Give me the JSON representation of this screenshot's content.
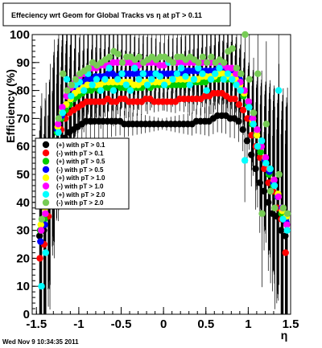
{
  "chart_data": {
    "type": "scatter",
    "title": "Effeciency wrt Geom for Global Tracks vs   η at pT > 0.11",
    "xlabel": "η",
    "ylabel": "Efficiency (%)",
    "xlim": [
      -1.55,
      1.5
    ],
    "ylim": [
      0,
      100
    ],
    "x_ticks": [
      -1.5,
      -1,
      -0.5,
      0,
      0.5,
      1,
      1.5
    ],
    "x_tick_labels": [
      "-1.5",
      "-1",
      "-0.5",
      "0",
      "0.5",
      "1",
      "1.5"
    ],
    "y_ticks": [
      0,
      10,
      20,
      30,
      40,
      50,
      60,
      70,
      80,
      90,
      100
    ],
    "y_tick_labels": [
      "0",
      "10",
      "20",
      "30",
      "40",
      "50",
      "60",
      "70",
      "80",
      "90",
      "100"
    ],
    "grid": false,
    "legend_position": "middle-left",
    "series": [
      {
        "name": "(+) with pT > 0.1",
        "color": "#000000",
        "x": [
          -1.45,
          -1.4,
          -1.35,
          -1.3,
          -1.25,
          -1.2,
          -1.15,
          -1.1,
          -1.05,
          -1.0,
          -0.95,
          -0.9,
          -0.85,
          -0.8,
          -0.75,
          -0.7,
          -0.65,
          -0.6,
          -0.55,
          -0.5,
          -0.45,
          -0.4,
          -0.35,
          -0.3,
          -0.25,
          -0.2,
          -0.15,
          -0.1,
          -0.05,
          0.0,
          0.05,
          0.1,
          0.15,
          0.2,
          0.25,
          0.3,
          0.35,
          0.4,
          0.45,
          0.5,
          0.55,
          0.6,
          0.65,
          0.7,
          0.75,
          0.8,
          0.85,
          0.9,
          0.95,
          1.0,
          1.05,
          1.1,
          1.15,
          1.2,
          1.25,
          1.3,
          1.35,
          1.4,
          1.45
        ],
        "y": [
          28,
          30,
          40,
          52,
          58,
          61,
          63,
          65,
          66,
          67,
          68,
          69,
          69,
          69,
          69,
          69,
          69,
          69,
          69,
          69,
          68,
          68,
          68,
          68,
          68,
          68,
          68,
          68,
          68,
          68,
          68,
          68,
          68,
          68,
          68,
          68,
          68,
          69,
          69,
          69,
          69,
          70,
          71,
          71,
          71,
          70,
          70,
          69,
          66,
          62,
          57,
          52,
          47,
          44,
          40,
          36,
          35,
          30,
          28
        ]
      },
      {
        "name": "(-) with pT > 0.1",
        "color": "#ff0000",
        "x": [
          -1.45,
          -1.4,
          -1.35,
          -1.3,
          -1.25,
          -1.2,
          -1.15,
          -1.1,
          -1.05,
          -1.0,
          -0.95,
          -0.9,
          -0.85,
          -0.8,
          -0.75,
          -0.7,
          -0.65,
          -0.6,
          -0.55,
          -0.5,
          -0.45,
          -0.4,
          -0.35,
          -0.3,
          -0.25,
          -0.2,
          -0.15,
          -0.1,
          -0.05,
          0.0,
          0.05,
          0.1,
          0.15,
          0.2,
          0.25,
          0.3,
          0.35,
          0.4,
          0.45,
          0.5,
          0.55,
          0.6,
          0.65,
          0.7,
          0.75,
          0.8,
          0.85,
          0.9,
          0.95,
          1.0,
          1.05,
          1.1,
          1.15,
          1.2,
          1.25,
          1.3,
          1.35,
          1.4,
          1.45
        ],
        "y": [
          20,
          25,
          35,
          50,
          60,
          66,
          70,
          72,
          73,
          74,
          75,
          76,
          76,
          76,
          76,
          76,
          77,
          76,
          76,
          77,
          77,
          76,
          76,
          76,
          76,
          77,
          77,
          76,
          76,
          76,
          76,
          76,
          76,
          77,
          77,
          77,
          77,
          77,
          77,
          78,
          78,
          79,
          79,
          79,
          78,
          77,
          77,
          75,
          73,
          70,
          64,
          60,
          56,
          52,
          47,
          44,
          38,
          34,
          22
        ]
      },
      {
        "name": "(+) with pT > 0.5",
        "color": "#00cc00",
        "x": [
          -1.45,
          -1.4,
          -1.35,
          -1.3,
          -1.25,
          -1.2,
          -1.15,
          -1.1,
          -1.05,
          -1.0,
          -0.95,
          -0.9,
          -0.85,
          -0.8,
          -0.75,
          -0.7,
          -0.65,
          -0.6,
          -0.55,
          -0.5,
          -0.45,
          -0.4,
          -0.35,
          -0.3,
          -0.25,
          -0.2,
          -0.15,
          -0.1,
          -0.05,
          0.0,
          0.05,
          0.1,
          0.15,
          0.2,
          0.25,
          0.3,
          0.35,
          0.4,
          0.45,
          0.5,
          0.55,
          0.6,
          0.65,
          0.7,
          0.75,
          0.8,
          0.85,
          0.9,
          0.95,
          1.0,
          1.05,
          1.1,
          1.15,
          1.2,
          1.25,
          1.3,
          1.35,
          1.4,
          1.45
        ],
        "y": [
          30,
          34,
          45,
          58,
          65,
          70,
          73,
          75,
          77,
          78,
          79,
          80,
          80,
          81,
          80,
          81,
          81,
          81,
          82,
          81,
          81,
          82,
          81,
          81,
          81,
          82,
          81,
          82,
          82,
          82,
          82,
          82,
          82,
          82,
          82,
          83,
          83,
          83,
          83,
          83,
          84,
          84,
          84,
          85,
          84,
          84,
          83,
          82,
          78,
          75,
          68,
          64,
          58,
          55,
          50,
          46,
          42,
          36,
          34
        ]
      },
      {
        "name": "(-) with pT > 0.5",
        "color": "#0000ff",
        "x": [
          -1.45,
          -1.4,
          -1.35,
          -1.3,
          -1.25,
          -1.2,
          -1.15,
          -1.1,
          -1.05,
          -1.0,
          -0.95,
          -0.9,
          -0.85,
          -0.8,
          -0.75,
          -0.7,
          -0.65,
          -0.6,
          -0.55,
          -0.5,
          -0.45,
          -0.4,
          -0.35,
          -0.3,
          -0.25,
          -0.2,
          -0.15,
          -0.1,
          -0.05,
          0.0,
          0.05,
          0.1,
          0.15,
          0.2,
          0.25,
          0.3,
          0.35,
          0.4,
          0.45,
          0.5,
          0.55,
          0.6,
          0.65,
          0.7,
          0.75,
          0.8,
          0.85,
          0.9,
          0.95,
          1.0,
          1.05,
          1.1,
          1.15,
          1.2,
          1.25,
          1.3,
          1.35,
          1.4,
          1.45
        ],
        "y": [
          26,
          32,
          44,
          56,
          66,
          71,
          75,
          78,
          80,
          82,
          83,
          84,
          84,
          85,
          85,
          85,
          86,
          86,
          85,
          86,
          86,
          86,
          86,
          86,
          86,
          86,
          86,
          86,
          86,
          86,
          86,
          86,
          86,
          86,
          87,
          87,
          87,
          87,
          87,
          87,
          87,
          87,
          88,
          88,
          87,
          87,
          86,
          84,
          80,
          76,
          70,
          64,
          60,
          55,
          51,
          47,
          42,
          38,
          33
        ]
      },
      {
        "name": "(+) with pT > 1.0",
        "color": "#ffff00",
        "x": [
          -1.45,
          -1.4,
          -1.35,
          -1.3,
          -1.25,
          -1.2,
          -1.15,
          -1.1,
          -1.05,
          -1.0,
          -0.95,
          -0.9,
          -0.85,
          -0.8,
          -0.75,
          -0.7,
          -0.65,
          -0.6,
          -0.55,
          -0.5,
          -0.45,
          -0.4,
          -0.35,
          -0.3,
          -0.25,
          -0.2,
          -0.15,
          -0.1,
          -0.05,
          0.0,
          0.05,
          0.1,
          0.15,
          0.2,
          0.25,
          0.3,
          0.35,
          0.4,
          0.45,
          0.5,
          0.55,
          0.6,
          0.65,
          0.7,
          0.75,
          0.8,
          0.85,
          0.9,
          0.95,
          1.0,
          1.05,
          1.1,
          1.15,
          1.2,
          1.25,
          1.3,
          1.35,
          1.4,
          1.45
        ],
        "y": [
          32,
          38,
          48,
          60,
          67,
          72,
          75,
          77,
          79,
          80,
          81,
          82,
          82,
          82,
          82,
          83,
          83,
          83,
          83,
          83,
          83,
          83,
          82,
          82,
          83,
          83,
          83,
          83,
          83,
          83,
          83,
          84,
          84,
          84,
          84,
          84,
          84,
          84,
          85,
          85,
          85,
          85,
          86,
          86,
          85,
          85,
          84,
          82,
          79,
          76,
          69,
          64,
          60,
          56,
          52,
          48,
          43,
          37,
          35
        ]
      },
      {
        "name": "(-) with pT > 1.0",
        "color": "#ff00ff",
        "x": [
          -1.45,
          -1.4,
          -1.35,
          -1.3,
          -1.25,
          -1.2,
          -1.15,
          -1.1,
          -1.05,
          -1.0,
          -0.95,
          -0.9,
          -0.85,
          -0.8,
          -0.75,
          -0.7,
          -0.65,
          -0.6,
          -0.55,
          -0.5,
          -0.45,
          -0.4,
          -0.35,
          -0.3,
          -0.25,
          -0.2,
          -0.15,
          -0.1,
          -0.05,
          0.0,
          0.05,
          0.1,
          0.15,
          0.2,
          0.25,
          0.3,
          0.35,
          0.4,
          0.45,
          0.5,
          0.55,
          0.6,
          0.65,
          0.7,
          0.75,
          0.8,
          0.85,
          0.9,
          0.95,
          1.0,
          1.05,
          1.1,
          1.15,
          1.2,
          1.25,
          1.3,
          1.35,
          1.4,
          1.45
        ],
        "y": [
          30,
          36,
          46,
          60,
          68,
          74,
          78,
          81,
          83,
          85,
          86,
          87,
          88,
          88,
          89,
          89,
          89,
          90,
          90,
          90,
          90,
          90,
          89,
          89,
          90,
          90,
          90,
          90,
          89,
          89,
          90,
          90,
          90,
          90,
          90,
          90,
          90,
          90,
          90,
          90,
          90,
          90,
          89,
          89,
          88,
          88,
          86,
          83,
          80,
          76,
          70,
          66,
          60,
          56,
          52,
          48,
          42,
          38,
          32
        ]
      },
      {
        "name": "(+) with pT > 2.0",
        "color": "#00ffff",
        "x": [
          -1.45,
          -1.4,
          -1.35,
          -1.3,
          -1.25,
          -1.2,
          -1.15,
          -1.1,
          -1.05,
          -1.0,
          -0.95,
          -0.9,
          -0.85,
          -0.8,
          -0.75,
          -0.7,
          -0.65,
          -0.6,
          -0.55,
          -0.5,
          -0.45,
          -0.4,
          -0.35,
          -0.3,
          -0.25,
          -0.2,
          -0.15,
          -0.1,
          -0.05,
          0.0,
          0.05,
          0.1,
          0.15,
          0.2,
          0.25,
          0.3,
          0.35,
          0.4,
          0.45,
          0.5,
          0.55,
          0.6,
          0.65,
          0.7,
          0.75,
          0.8,
          0.85,
          0.9,
          0.95,
          1.0,
          1.05,
          1.1,
          1.15,
          1.2,
          1.25,
          1.3,
          1.35,
          1.4,
          1.45
        ],
        "y": [
          10,
          22,
          40,
          55,
          65,
          72,
          84,
          78,
          82,
          83,
          80,
          86,
          82,
          84,
          80,
          84,
          88,
          80,
          84,
          86,
          82,
          80,
          88,
          84,
          86,
          82,
          84,
          86,
          85,
          82,
          90,
          84,
          86,
          88,
          85,
          82,
          84,
          88,
          86,
          80,
          84,
          86,
          88,
          84,
          86,
          84,
          82,
          80,
          55,
          74,
          68,
          60,
          62,
          54,
          52,
          46,
          80,
          34,
          30
        ]
      },
      {
        "name": "(-) with pT > 2.0",
        "color": "#77cc55",
        "x": [
          -1.45,
          -1.4,
          -1.35,
          -1.3,
          -1.25,
          -1.2,
          -1.15,
          -1.1,
          -1.05,
          -1.0,
          -0.95,
          -0.9,
          -0.85,
          -0.8,
          -0.75,
          -0.7,
          -0.65,
          -0.6,
          -0.55,
          -0.5,
          -0.45,
          -0.4,
          -0.35,
          -0.3,
          -0.25,
          -0.2,
          -0.15,
          -0.1,
          -0.05,
          0.0,
          0.05,
          0.1,
          0.15,
          0.2,
          0.25,
          0.3,
          0.35,
          0.4,
          0.45,
          0.5,
          0.55,
          0.6,
          0.65,
          0.7,
          0.75,
          0.8,
          0.85,
          0.9,
          0.95,
          1.0,
          1.05,
          1.1,
          1.15,
          1.2,
          1.25,
          1.3,
          1.35,
          1.4,
          1.45
        ],
        "y": [
          34,
          40,
          50,
          62,
          70,
          86,
          80,
          82,
          84,
          86,
          87,
          88,
          90,
          89,
          90,
          91,
          92,
          94,
          93,
          90,
          92,
          92,
          91,
          92,
          90,
          91,
          92,
          91,
          92,
          92,
          91,
          90,
          92,
          92,
          91,
          92,
          91,
          90,
          92,
          90,
          92,
          90,
          91,
          90,
          94,
          95,
          88,
          86,
          100,
          84,
          72,
          86,
          36,
          68,
          44,
          38,
          50,
          38,
          36
        ]
      }
    ]
  },
  "footer": {
    "timestamp": "Wed Nov  9 10:34:35 2011"
  }
}
